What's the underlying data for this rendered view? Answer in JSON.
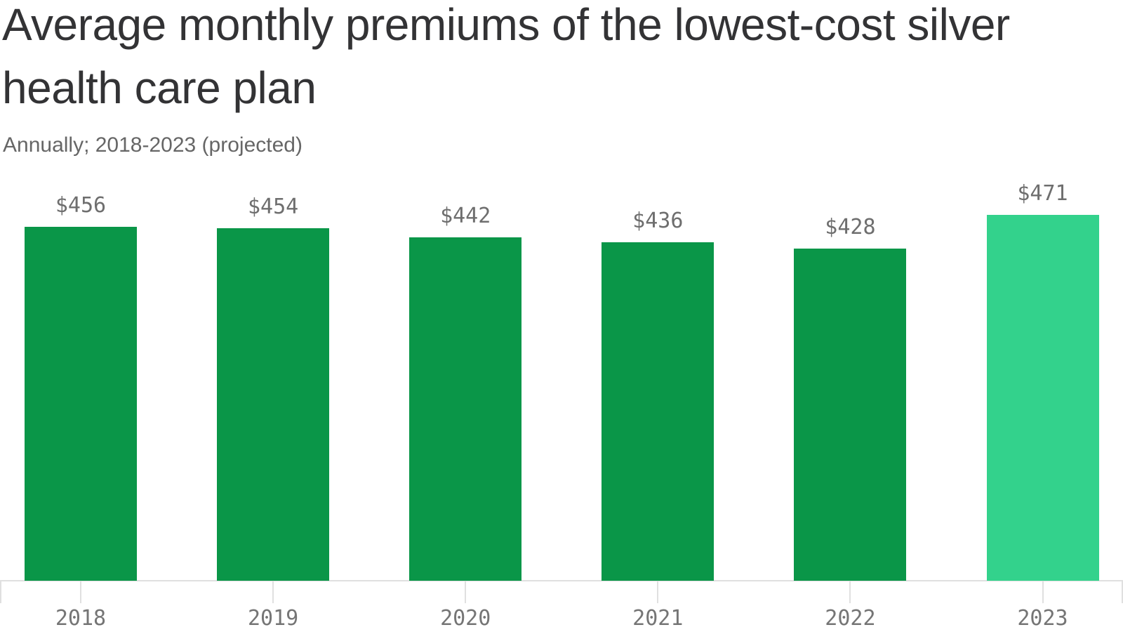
{
  "header": {
    "title": "Average monthly premiums of the lowest-cost silver health care plan",
    "title_lines": [
      "Average monthly premiums of the lowest-cost silver",
      "health care plan"
    ],
    "subtitle": "Annually; 2018-2023 (projected)"
  },
  "chart_data": {
    "type": "bar",
    "title": "Average monthly premiums of the lowest-cost silver health care plan",
    "subtitle": "Annually; 2018-2023 (projected)",
    "categories": [
      "2018",
      "2019",
      "2020",
      "2021",
      "2022",
      "2023"
    ],
    "values": [
      456,
      454,
      442,
      436,
      428,
      471
    ],
    "value_labels": [
      "$456",
      "$454",
      "$442",
      "$436",
      "$428",
      "$471"
    ],
    "xlabel": "",
    "ylabel": "",
    "ylim": [
      0,
      530
    ],
    "grid": false,
    "legend": false,
    "highlight_index": 5,
    "colors": {
      "bar_default": "#0a9648",
      "bar_highlight": "#33d28c",
      "axis_line": "#e0e0e0",
      "value_label_text": "#6e6e6e",
      "axis_label_text": "#757575",
      "title_text": "#333335",
      "subtitle_text": "#666666"
    }
  }
}
